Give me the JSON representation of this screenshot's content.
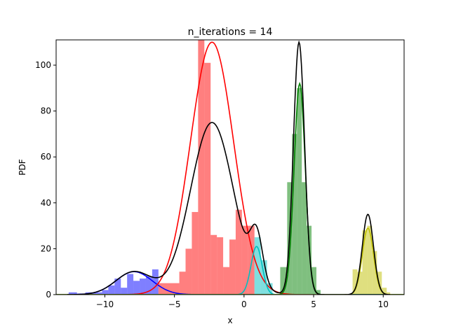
{
  "chart_data": {
    "type": "bar",
    "title": "n_iterations = 14",
    "xlabel": "x",
    "ylabel": "PDF",
    "xlim": [
      -13.5,
      11.5
    ],
    "ylim": [
      0,
      111
    ],
    "xticks": [
      -10,
      -5,
      0,
      5,
      10
    ],
    "yticks": [
      0,
      20,
      40,
      60,
      80,
      100
    ],
    "grid": false,
    "histograms": [
      {
        "color": "#0000ff",
        "bins": [
          {
            "x0": -12.6,
            "x1": -12.0,
            "v": 1
          },
          {
            "x0": -12.0,
            "x1": -11.4,
            "v": 0.5
          },
          {
            "x0": -11.4,
            "x1": -10.8,
            "v": 1
          },
          {
            "x0": -10.8,
            "x1": -10.2,
            "v": 1
          },
          {
            "x0": -10.2,
            "x1": -9.75,
            "v": 2
          },
          {
            "x0": -9.75,
            "x1": -9.3,
            "v": 4
          },
          {
            "x0": -9.3,
            "x1": -8.85,
            "v": 7
          },
          {
            "x0": -8.85,
            "x1": -8.4,
            "v": 3
          },
          {
            "x0": -8.4,
            "x1": -7.95,
            "v": 9
          },
          {
            "x0": -7.95,
            "x1": -7.5,
            "v": 6
          },
          {
            "x0": -7.5,
            "x1": -7.05,
            "v": 7
          },
          {
            "x0": -7.05,
            "x1": -6.6,
            "v": 8
          },
          {
            "x0": -6.6,
            "x1": -6.15,
            "v": 11
          }
        ]
      },
      {
        "color": "#ff0000",
        "bins": [
          {
            "x0": -6.15,
            "x1": -4.65,
            "v": 5
          },
          {
            "x0": -4.65,
            "x1": -4.2,
            "v": 10
          },
          {
            "x0": -4.2,
            "x1": -3.75,
            "v": 20
          },
          {
            "x0": -3.75,
            "x1": -3.3,
            "v": 36
          },
          {
            "x0": -3.3,
            "x1": -2.85,
            "v": 111
          },
          {
            "x0": -2.85,
            "x1": -2.4,
            "v": 101
          },
          {
            "x0": -2.4,
            "x1": -1.95,
            "v": 26
          },
          {
            "x0": -1.95,
            "x1": -1.5,
            "v": 25
          },
          {
            "x0": -1.5,
            "x1": -1.05,
            "v": 12
          },
          {
            "x0": -1.05,
            "x1": -0.6,
            "v": 24
          },
          {
            "x0": -0.6,
            "x1": -0.15,
            "v": 37
          },
          {
            "x0": -0.15,
            "x1": 0.3,
            "v": 30
          },
          {
            "x0": 0.3,
            "x1": 0.75,
            "v": 30
          }
        ]
      },
      {
        "color": "#00bfbf",
        "bins": [
          {
            "x0": 0.75,
            "x1": 1.2,
            "v": 25
          },
          {
            "x0": 1.2,
            "x1": 1.65,
            "v": 15
          },
          {
            "x0": 1.65,
            "x1": 2.05,
            "v": 5
          }
        ]
      },
      {
        "color": "#008000",
        "bins": [
          {
            "x0": 2.6,
            "x1": 3.1,
            "v": 12
          },
          {
            "x0": 3.1,
            "x1": 3.45,
            "v": 49
          },
          {
            "x0": 3.45,
            "x1": 3.8,
            "v": 70
          },
          {
            "x0": 3.8,
            "x1": 4.15,
            "v": 90
          },
          {
            "x0": 4.15,
            "x1": 4.5,
            "v": 49
          },
          {
            "x0": 4.5,
            "x1": 4.85,
            "v": 30
          },
          {
            "x0": 4.85,
            "x1": 5.2,
            "v": 12
          },
          {
            "x0": 5.2,
            "x1": 5.5,
            "v": 2
          }
        ]
      },
      {
        "color": "#bfbf00",
        "bins": [
          {
            "x0": 7.8,
            "x1": 8.15,
            "v": 11
          },
          {
            "x0": 8.15,
            "x1": 8.5,
            "v": 10
          },
          {
            "x0": 8.5,
            "x1": 8.85,
            "v": 28
          },
          {
            "x0": 8.85,
            "x1": 9.2,
            "v": 30
          },
          {
            "x0": 9.2,
            "x1": 9.55,
            "v": 19
          },
          {
            "x0": 9.55,
            "x1": 9.9,
            "v": 10
          },
          {
            "x0": 9.9,
            "x1": 10.25,
            "v": 3
          },
          {
            "x0": 10.25,
            "x1": 10.5,
            "v": 1
          }
        ]
      }
    ],
    "components": [
      {
        "color": "#0000ff",
        "mean": -7.9,
        "sd": 1.3,
        "peak": 10
      },
      {
        "color": "#ff0000",
        "mean": -2.3,
        "sd": 1.55,
        "peak": 110
      },
      {
        "color": "#00bfbf",
        "mean": 0.9,
        "sd": 0.4,
        "peak": 21
      },
      {
        "color": "#008000",
        "mean": 4.0,
        "sd": 0.4,
        "peak": 92
      },
      {
        "color": "#bfbf00",
        "mean": 8.9,
        "sd": 0.4,
        "peak": 29
      }
    ],
    "mixture": {
      "color": "#000000",
      "x_range": [
        -12.7,
        10.5
      ],
      "components": [
        {
          "mean": -7.9,
          "sd": 1.3,
          "peak": 10
        },
        {
          "mean": -2.3,
          "sd": 1.55,
          "peak": 75
        },
        {
          "mean": 0.9,
          "sd": 0.45,
          "peak": 21
        },
        {
          "mean": 3.95,
          "sd": 0.4,
          "peak": 110
        },
        {
          "mean": 8.9,
          "sd": 0.4,
          "peak": 35
        }
      ]
    }
  }
}
